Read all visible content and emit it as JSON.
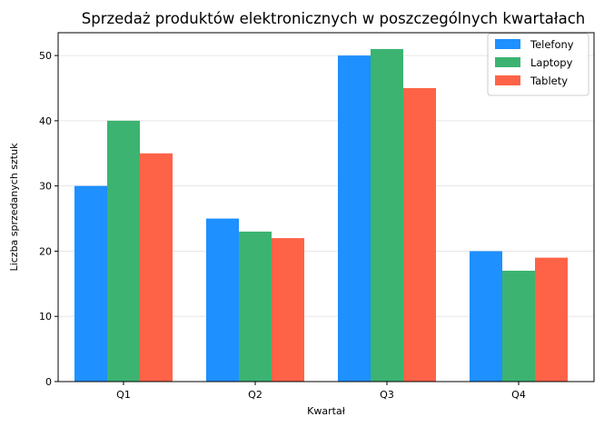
{
  "chart_data": {
    "type": "bar",
    "title": "Sprzedaż produktów elektronicznych w poszczególnych kwartałach",
    "xlabel": "Kwartał",
    "ylabel": "Liczba sprzedanych sztuk",
    "categories": [
      "Q1",
      "Q2",
      "Q3",
      "Q4"
    ],
    "series": [
      {
        "name": "Telefony",
        "color": "#1e90ff",
        "values": [
          30,
          25,
          50,
          20
        ]
      },
      {
        "name": "Laptopy",
        "color": "#3cb371",
        "values": [
          40,
          23,
          51,
          17
        ]
      },
      {
        "name": "Tablety",
        "color": "#ff6347",
        "values": [
          35,
          22,
          45,
          19
        ]
      }
    ],
    "ylim": [
      0,
      53.5
    ],
    "yticks": [
      0,
      10,
      20,
      30,
      40,
      50
    ],
    "grid": "y",
    "legend_position": "top-right"
  }
}
